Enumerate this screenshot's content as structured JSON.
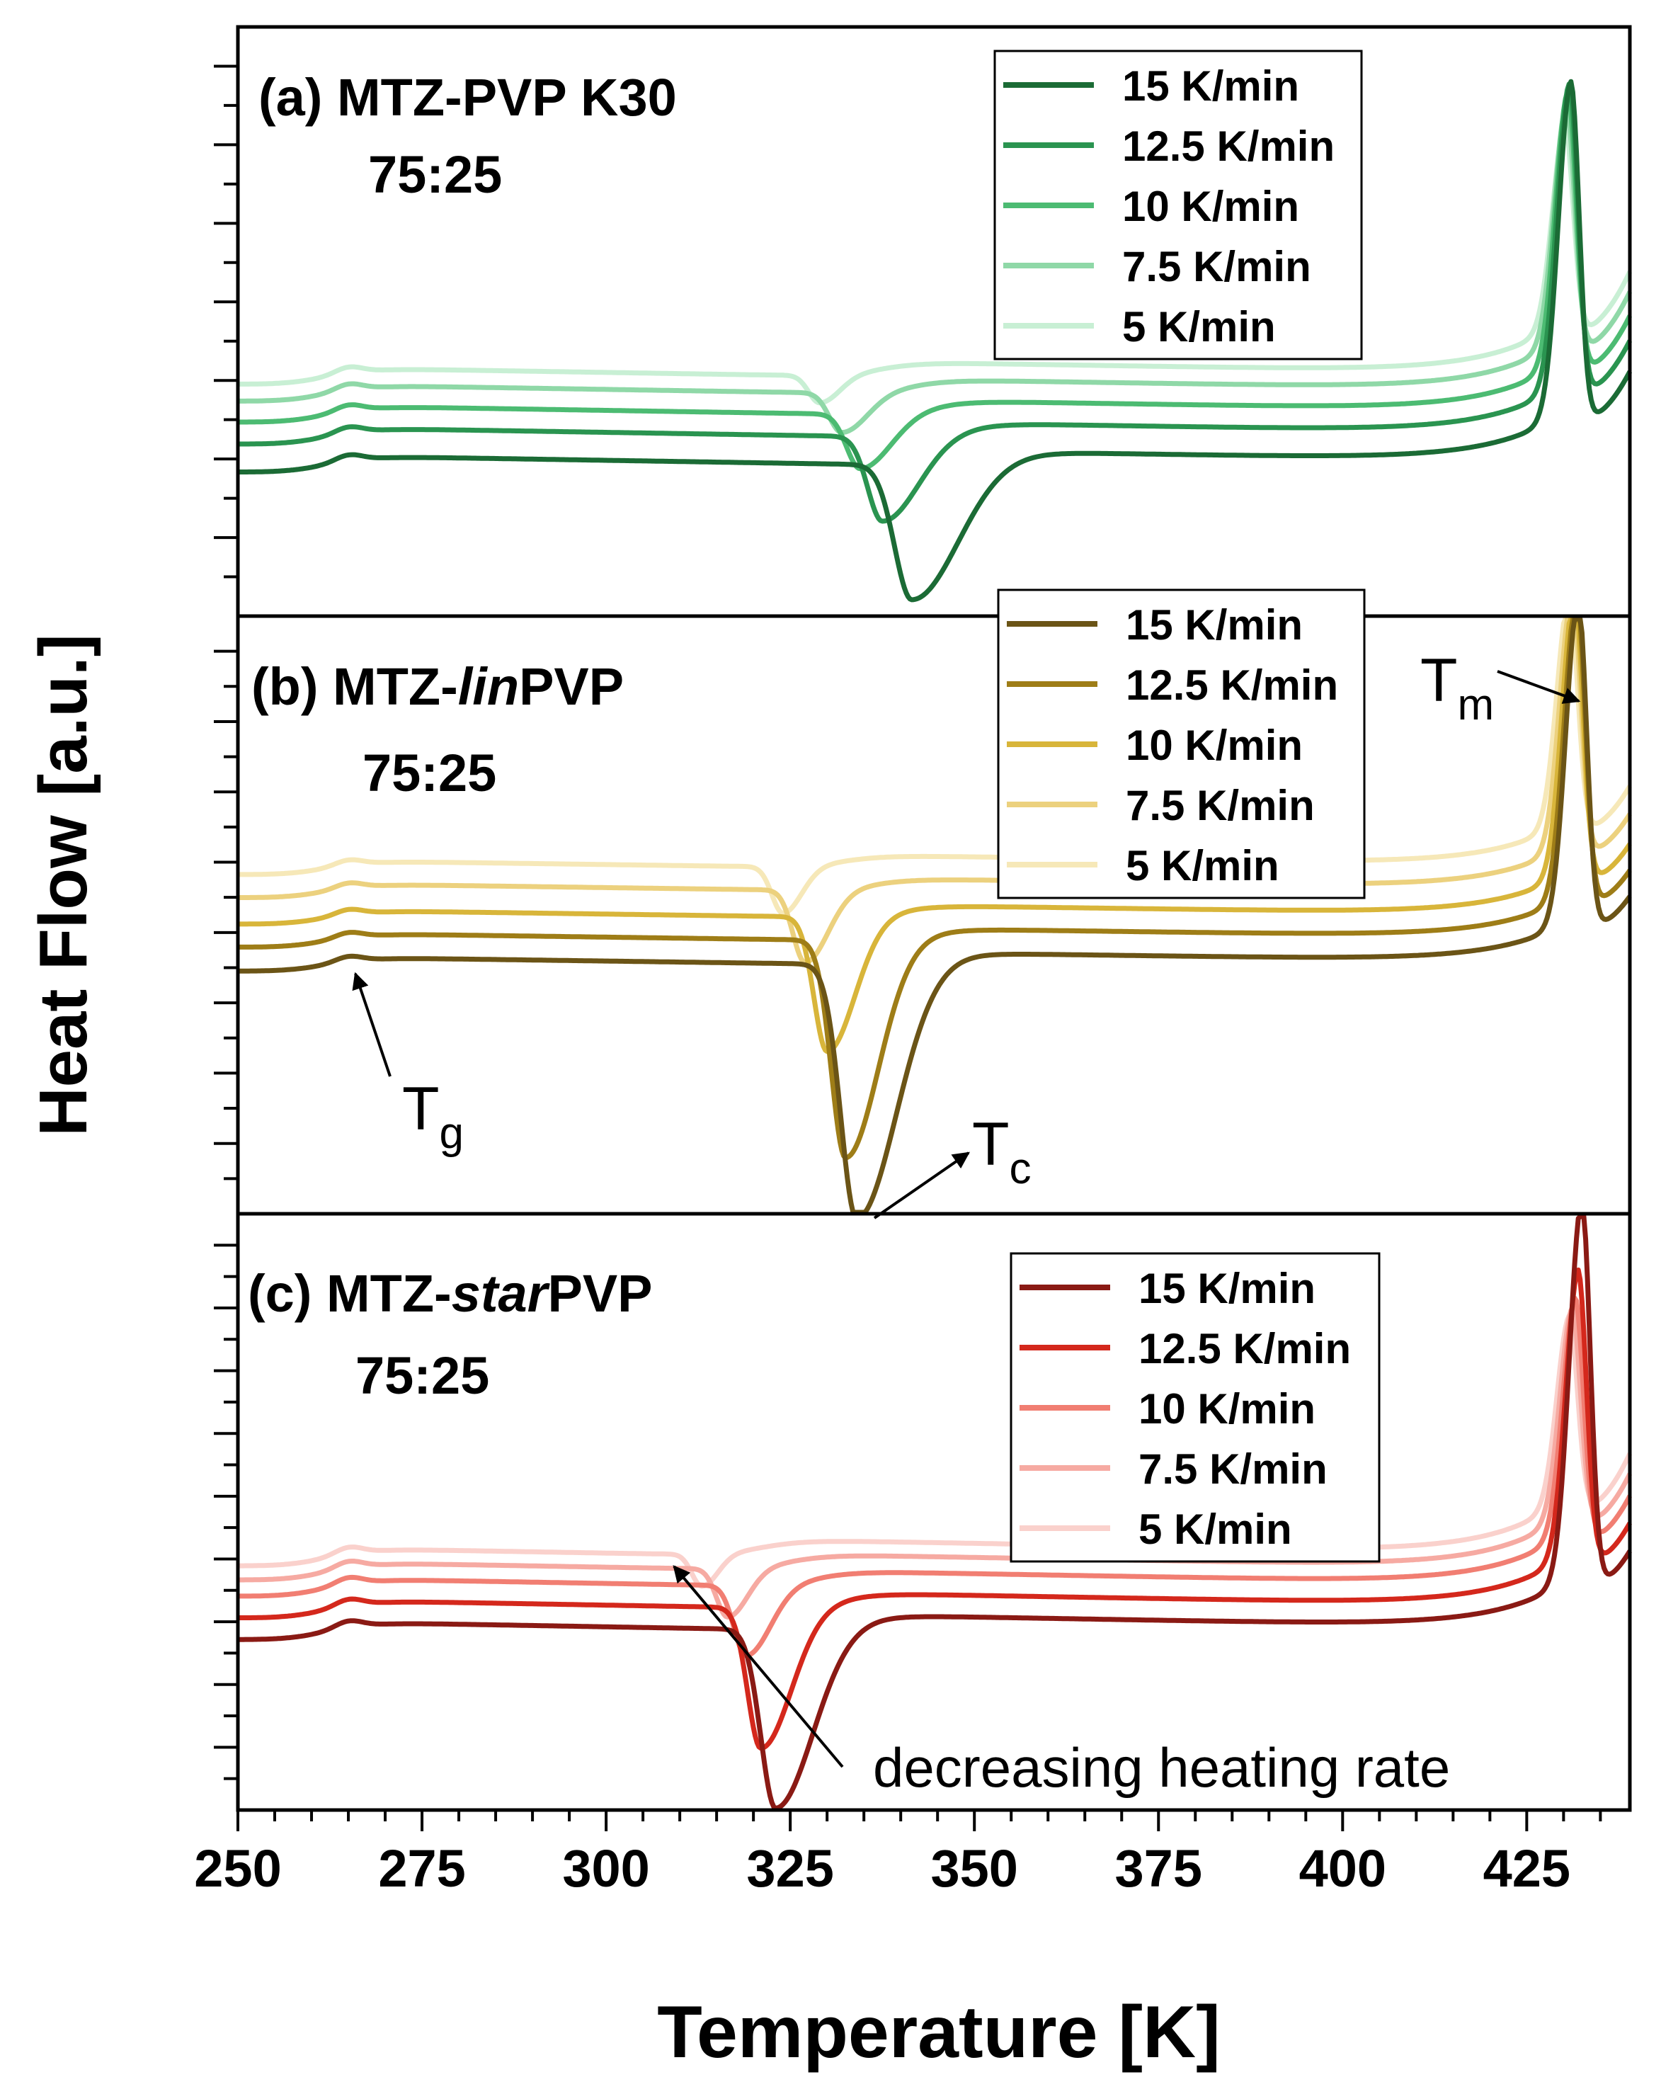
{
  "figure": {
    "ylabel": "Heat Flow [a.u.]",
    "xlabel": "Temperature [K]"
  },
  "chart_data": [
    {
      "type": "line",
      "panel": "a",
      "title_prefix": "(a) MTZ-",
      "title_italic": "",
      "title_suffix": "PVP K30",
      "ratio": "75:25",
      "xlim": [
        250,
        439
      ],
      "x_ticks": [
        250,
        275,
        300,
        325,
        350,
        375,
        400,
        425
      ],
      "legend_position": "top-right",
      "annotations": [],
      "series": [
        {
          "name": "15 K/min",
          "color": "#1b6b35",
          "baseline": -0.28,
          "tc": 341.5,
          "tc_depth": 1.35,
          "tc_width": 3.3,
          "tc_left": 11,
          "tc_asym": 2.6,
          "tm": 431.0,
          "tm_height": 3.25
        },
        {
          "name": "12.5 K/min",
          "color": "#2a9450",
          "baseline": 0.0,
          "tc": 337.5,
          "tc_depth": 0.85,
          "tc_width": 2.8,
          "tc_left": 10,
          "tc_asym": 2.4,
          "tm": 430.8,
          "tm_height": 2.95
        },
        {
          "name": "10 K/min",
          "color": "#4cbb72",
          "baseline": 0.22,
          "tc": 334.5,
          "tc_depth": 0.55,
          "tc_width": 2.6,
          "tc_left": 9,
          "tc_asym": 2.2,
          "tm": 430.6,
          "tm_height": 2.65
        },
        {
          "name": "7.5 K/min",
          "color": "#8fd8a7",
          "baseline": 0.43,
          "tc": 332.0,
          "tc_depth": 0.4,
          "tc_width": 2.4,
          "tc_left": 9,
          "tc_asym": 2.0,
          "tm": 430.4,
          "tm_height": 2.3
        },
        {
          "name": "5 K/min",
          "color": "#c8efd4",
          "baseline": 0.6,
          "tc": 329.0,
          "tc_depth": 0.28,
          "tc_width": 2.1,
          "tc_left": 8,
          "tc_asym": 1.8,
          "tm": 430.2,
          "tm_height": 1.95
        }
      ]
    },
    {
      "type": "line",
      "panel": "b",
      "title_prefix": "(b) MTZ-",
      "title_italic": "lin",
      "title_suffix": "PVP",
      "ratio": "75:25",
      "xlim": [
        250,
        439
      ],
      "x_ticks": [
        250,
        275,
        300,
        325,
        350,
        375,
        400,
        425
      ],
      "legend_position": "top-right",
      "annotations": [
        {
          "label": "T",
          "sub": "g",
          "x": 265
        },
        {
          "label": "T",
          "sub": "c",
          "x": 333
        },
        {
          "label": "T",
          "sub": "m",
          "x": 432
        }
      ],
      "series": [
        {
          "name": "15 K/min",
          "color": "#6b5416",
          "baseline": -0.08,
          "tc": 334.0,
          "tc_depth": 2.98,
          "tc_width": 3.0,
          "tc_left": 10,
          "tc_asym": 2.5,
          "tm": 432.0,
          "tm_height": 3.7
        },
        {
          "name": "12.5 K/min",
          "color": "#9e7d17",
          "baseline": 0.2,
          "tc": 332.5,
          "tc_depth": 2.55,
          "tc_width": 2.7,
          "tc_left": 10,
          "tc_asym": 2.3,
          "tm": 431.8,
          "tm_height": 3.45
        },
        {
          "name": "10 K/min",
          "color": "#d8b53a",
          "baseline": 0.47,
          "tc": 330.0,
          "tc_depth": 1.58,
          "tc_width": 2.5,
          "tc_left": 9,
          "tc_asym": 2.1,
          "tm": 431.5,
          "tm_height": 3.2
        },
        {
          "name": "7.5 K/min",
          "color": "#ecd17e",
          "baseline": 0.78,
          "tc": 327.0,
          "tc_depth": 0.85,
          "tc_width": 2.3,
          "tc_left": 9,
          "tc_asym": 1.9,
          "tm": 431.2,
          "tm_height": 2.9
        },
        {
          "name": "5 K/min",
          "color": "#f6e8b8",
          "baseline": 1.05,
          "tc": 324.0,
          "tc_depth": 0.55,
          "tc_width": 2.1,
          "tc_left": 8,
          "tc_asym": 1.7,
          "tm": 430.8,
          "tm_height": 2.6
        }
      ]
    },
    {
      "type": "line",
      "panel": "c",
      "title_prefix": "(c) MTZ-",
      "title_italic": "star",
      "title_suffix": "PVP",
      "ratio": "75:25",
      "xlim": [
        250,
        439
      ],
      "x_ticks": [
        250,
        275,
        300,
        325,
        350,
        375,
        400,
        425
      ],
      "legend_position": "top-right",
      "annotations": [
        {
          "label": "decreasing heating rate"
        }
      ],
      "series": [
        {
          "name": "15 K/min",
          "color": "#8a1a14",
          "baseline": -0.15,
          "tc": 323.0,
          "tc_depth": 1.65,
          "tc_width": 2.8,
          "tc_left": 10,
          "tc_asym": 2.5,
          "tm": 432.5,
          "tm_height": 3.4
        },
        {
          "name": "12.5 K/min",
          "color": "#d4281c",
          "baseline": 0.05,
          "tc": 321.0,
          "tc_depth": 1.3,
          "tc_width": 2.5,
          "tc_left": 10,
          "tc_asym": 2.3,
          "tm": 432.0,
          "tm_height": 2.55
        },
        {
          "name": "10 K/min",
          "color": "#f17e72",
          "baseline": 0.25,
          "tc": 319.0,
          "tc_depth": 0.65,
          "tc_width": 2.3,
          "tc_left": 9,
          "tc_asym": 2.0,
          "tm": 431.6,
          "tm_height": 2.1
        },
        {
          "name": "7.5 K/min",
          "color": "#f6aaa2",
          "baseline": 0.4,
          "tc": 316.5,
          "tc_depth": 0.45,
          "tc_width": 2.1,
          "tc_left": 8,
          "tc_asym": 1.8,
          "tm": 431.2,
          "tm_height": 1.85
        },
        {
          "name": "5 K/min",
          "color": "#fad1cc",
          "baseline": 0.53,
          "tc": 313.0,
          "tc_depth": 0.3,
          "tc_width": 1.9,
          "tc_left": 8,
          "tc_asym": 1.6,
          "tm": 430.8,
          "tm_height": 1.65
        }
      ]
    }
  ]
}
